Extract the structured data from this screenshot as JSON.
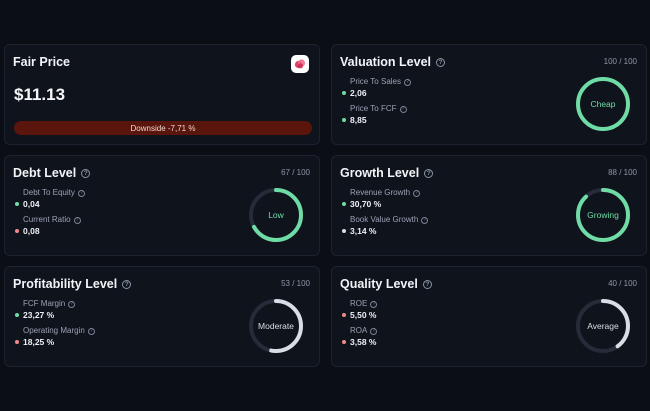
{
  "fair_price": {
    "title": "Fair Price",
    "price": "$11.13",
    "downside": "Downside -7,71 %",
    "logo_icon": "app-logo-icon"
  },
  "cards": [
    {
      "key": "valuation",
      "title": "Valuation Level",
      "score": "100 / 100",
      "score_fraction": 1.0,
      "gauge_label": "Cheap",
      "gauge_color": "#6fdca5",
      "metrics": [
        {
          "label": "Price To Sales",
          "value": "2,06",
          "dot_color": "#6fdca5"
        },
        {
          "label": "Price To FCF",
          "value": "8,85",
          "dot_color": "#6fdca5"
        }
      ]
    },
    {
      "key": "debt",
      "title": "Debt Level",
      "score": "67 / 100",
      "score_fraction": 0.67,
      "gauge_label": "Low",
      "gauge_color": "#6fdca5",
      "metrics": [
        {
          "label": "Debt To Equity",
          "value": "0,04",
          "dot_color": "#6fdca5"
        },
        {
          "label": "Current Ratio",
          "value": "0,08",
          "dot_color": "#f08a8a"
        }
      ]
    },
    {
      "key": "growth",
      "title": "Growth Level",
      "score": "88 / 100",
      "score_fraction": 0.88,
      "gauge_label": "Growing",
      "gauge_color": "#6fdca5",
      "metrics": [
        {
          "label": "Revenue Growth",
          "value": "30,70 %",
          "dot_color": "#6fdca5"
        },
        {
          "label": "Book Value Growth",
          "value": "3,14 %",
          "dot_color": "#d9dde5"
        }
      ]
    },
    {
      "key": "profitability",
      "title": "Profitability Level",
      "score": "53 / 100",
      "score_fraction": 0.53,
      "gauge_label": "Moderate",
      "gauge_color": "#d9dde5",
      "metrics": [
        {
          "label": "FCF Margin",
          "value": "23,27 %",
          "dot_color": "#6fdca5"
        },
        {
          "label": "Operating Margin",
          "value": "18,25 %",
          "dot_color": "#f08a8a"
        }
      ]
    },
    {
      "key": "quality",
      "title": "Quality Level",
      "score": "40 / 100",
      "score_fraction": 0.4,
      "gauge_label": "Average",
      "gauge_color": "#d9dde5",
      "metrics": [
        {
          "label": "ROE",
          "value": "5,50 %",
          "dot_color": "#f08a8a"
        },
        {
          "label": "ROA",
          "value": "3,58 %",
          "dot_color": "#f08a8a"
        }
      ]
    }
  ]
}
